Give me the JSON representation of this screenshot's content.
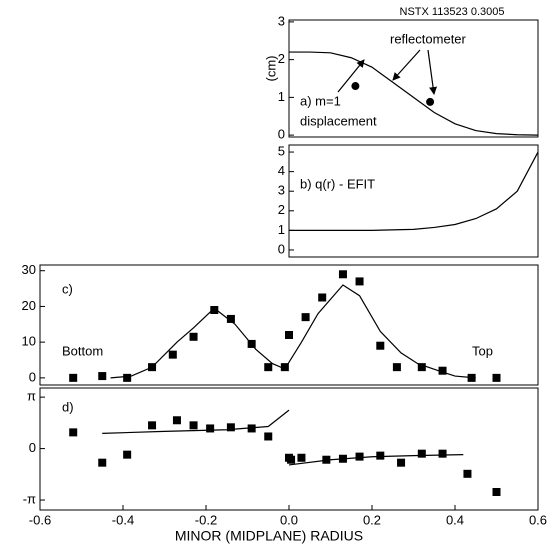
{
  "chart_data": [
    {
      "type": "line",
      "ylabel": "(cm)",
      "annotations": [
        "NSTX 113523  0.3005",
        "reflectometer",
        "a) m=1",
        "displacement"
      ],
      "xlim": [
        0,
        0.6
      ],
      "ylim": [
        -0.05,
        3.05
      ],
      "yticks": [
        0,
        1,
        2,
        3
      ],
      "series": [
        {
          "style": "line",
          "color": "#000000",
          "x": [
            0,
            0.05,
            0.1,
            0.15,
            0.2,
            0.25,
            0.3,
            0.35,
            0.4,
            0.45,
            0.5,
            0.55,
            0.6
          ],
          "values": [
            2.2,
            2.2,
            2.18,
            2.05,
            1.8,
            1.4,
            1.0,
            0.6,
            0.3,
            0.12,
            0.04,
            0.01,
            0
          ]
        },
        {
          "style": "circle",
          "color": "#000000",
          "x": [
            0.16,
            0.34
          ],
          "values": [
            1.3,
            0.88
          ]
        }
      ]
    },
    {
      "type": "line",
      "annotations": [
        "b) q(r) - EFIT"
      ],
      "xlim": [
        0,
        0.6
      ],
      "ylim": [
        -0.36,
        5.36
      ],
      "yticks": [
        0,
        1,
        2,
        3,
        4,
        5
      ],
      "series": [
        {
          "style": "line",
          "color": "#000000",
          "x": [
            0,
            0.1,
            0.2,
            0.3,
            0.35,
            0.4,
            0.45,
            0.5,
            0.55,
            0.6
          ],
          "values": [
            1,
            1,
            1,
            1.05,
            1.15,
            1.3,
            1.6,
            2.1,
            3.0,
            5.0
          ]
        }
      ]
    },
    {
      "type": "line",
      "annotations": [
        "c)",
        "Bottom",
        "Top"
      ],
      "xlim": [
        -0.6,
        0.6
      ],
      "ylim": [
        -2,
        31.6
      ],
      "yticks": [
        0,
        10,
        20,
        30
      ],
      "series": [
        {
          "style": "line",
          "color": "#000000",
          "x": [
            -0.43,
            -0.38,
            -0.33,
            -0.27,
            -0.23,
            -0.18,
            -0.13,
            -0.08,
            -0.04,
            -0.01,
            0.03,
            0.07,
            0.13,
            0.17,
            0.22,
            0.27,
            0.31,
            0.36,
            0.4,
            0.45
          ],
          "values": [
            0,
            0.5,
            3,
            10,
            14,
            19.5,
            15,
            8,
            4,
            2.5,
            10,
            18,
            26,
            23,
            13,
            7,
            4,
            2,
            0.5,
            0
          ]
        },
        {
          "style": "square",
          "color": "#000000",
          "x": [
            -0.52,
            -0.45,
            -0.39,
            -0.33,
            -0.28,
            -0.23,
            -0.18,
            -0.14,
            -0.09,
            -0.05,
            -0.01,
            0.0,
            0.04,
            0.08,
            0.13,
            0.17,
            0.22,
            0.26,
            0.32,
            0.37,
            0.44,
            0.5
          ],
          "values": [
            0,
            0.5,
            0,
            3,
            6.5,
            11.5,
            19,
            16.5,
            9.5,
            3,
            3,
            12,
            17,
            22.5,
            29,
            27,
            9,
            3,
            3,
            2,
            0,
            0
          ]
        }
      ]
    },
    {
      "type": "line",
      "xlabel": "MINOR (MIDPLANE) RADIUS",
      "annotations": [
        "d)"
      ],
      "xlim": [
        -0.6,
        0.6
      ],
      "ylim": [
        -3.75,
        3.7
      ],
      "xticks": [
        -0.6,
        -0.4,
        -0.2,
        {
          "value": 0,
          "label": "0.0"
        },
        0.2,
        0.4,
        0.6
      ],
      "yticks": [
        {
          "value": 3.14159,
          "label": "π"
        },
        0,
        {
          "value": -3.14159,
          "label": "-π"
        }
      ],
      "series": [
        {
          "style": "line",
          "color": "#000000",
          "x": [
            -0.45,
            -0.3,
            -0.15,
            -0.05,
            0.0,
            null,
            0.0,
            0.1,
            0.2,
            0.3,
            0.42
          ],
          "values": [
            0.93,
            1.05,
            1.15,
            1.35,
            2.35,
            null,
            -1.0,
            -0.68,
            -0.5,
            -0.43,
            -0.37
          ]
        },
        {
          "style": "square",
          "color": "#000000",
          "x": [
            -0.52,
            -0.45,
            -0.39,
            -0.33,
            -0.27,
            -0.23,
            -0.19,
            -0.14,
            -0.09,
            -0.05,
            0.0,
            0.005,
            0.03,
            0.09,
            0.13,
            0.17,
            0.22,
            0.27,
            0.32,
            0.37,
            0.43,
            0.5
          ],
          "values": [
            0.99,
            -0.86,
            -0.37,
            1.42,
            1.73,
            1.42,
            1.23,
            1.3,
            1.23,
            0.74,
            -0.56,
            -0.68,
            -0.56,
            -0.68,
            -0.62,
            -0.49,
            -0.43,
            -0.86,
            -0.31,
            -0.31,
            -1.54,
            -2.65
          ]
        }
      ]
    }
  ]
}
